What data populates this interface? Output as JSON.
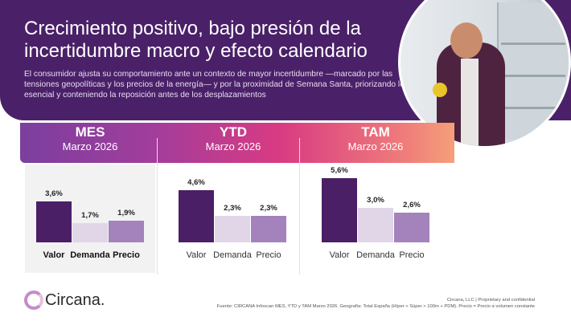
{
  "header": {
    "title": "Crecimiento positivo, bajo presión de la incertidumbre macro y efecto calendario",
    "subtitle": "El consumidor ajusta su comportamiento ante un contexto de mayor incertidumbre —marcado por las tensiones geopolíticas y los precios de la energía— y por la proximidad de Semana Santa, priorizando lo esencial y conteniendo la reposición antes de los desplazamientos"
  },
  "colors": {
    "valor": "#4a1f66",
    "demanda": "#e0d6e8",
    "precio": "#a482bb",
    "header": "#4a2168"
  },
  "chart_data": [
    {
      "type": "bar",
      "title": "MES",
      "subtitle": "Marzo 2026",
      "categories": [
        "Valor",
        "Demanda",
        "Precio"
      ],
      "values": [
        3.6,
        1.7,
        1.9
      ],
      "labels": [
        "3,6%",
        "1,7%",
        "1,9%"
      ]
    },
    {
      "type": "bar",
      "title": "YTD",
      "subtitle": "Marzo 2026",
      "categories": [
        "Valor",
        "Demanda",
        "Precio"
      ],
      "values": [
        4.6,
        2.3,
        2.3
      ],
      "labels": [
        "4,6%",
        "2,3%",
        "2,3%"
      ]
    },
    {
      "type": "bar",
      "title": "TAM",
      "subtitle": "Marzo 2026",
      "categories": [
        "Valor",
        "Demanda",
        "Precio"
      ],
      "values": [
        5.6,
        3.0,
        2.6
      ],
      "labels": [
        "5,6%",
        "3,0%",
        "2,6%"
      ]
    }
  ],
  "footer": {
    "logo": "Circana.",
    "line1": "Circana, LLC  |  Proprietary and confidential",
    "line2": "Fuente: CIRCANA Infoscan MES, YTD y TAM Marzo 2026. Geografía: Total España (Híper + Súper > 100m + PDM). Precio = Precio a volumen constante"
  }
}
